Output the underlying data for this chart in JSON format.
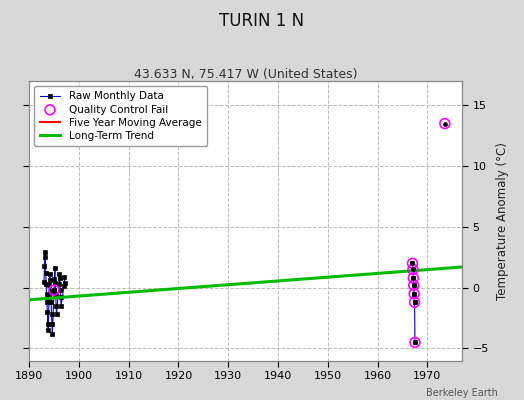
{
  "title": "TURIN 1 N",
  "subtitle": "43.633 N, 75.417 W (United States)",
  "ylabel": "Temperature Anomaly (°C)",
  "credit": "Berkeley Earth",
  "xlim": [
    1890,
    1977
  ],
  "ylim": [
    -6,
    17
  ],
  "yticks": [
    -5,
    0,
    5,
    10,
    15
  ],
  "xticks": [
    1890,
    1900,
    1910,
    1920,
    1930,
    1940,
    1950,
    1960,
    1970
  ],
  "background_color": "#d8d8d8",
  "plot_bg_color": "#ffffff",
  "grid_color": "#bbbbbb",
  "cluster1_x": [
    1893.0,
    1893.083,
    1893.167,
    1893.25,
    1893.333,
    1893.417,
    1893.5,
    1893.583,
    1893.667,
    1893.75,
    1893.833,
    1894.0,
    1894.083,
    1894.167,
    1894.25,
    1894.333,
    1894.417,
    1894.5,
    1894.583,
    1894.667,
    1895.0,
    1895.083,
    1895.167,
    1895.25,
    1895.333,
    1895.417,
    1895.5,
    1896.0,
    1896.083,
    1896.167,
    1896.25,
    1896.333,
    1896.417,
    1897.0,
    1897.083,
    1897.167
  ],
  "cluster1_y": [
    0.5,
    1.8,
    2.5,
    2.9,
    1.2,
    0.3,
    -0.5,
    -1.2,
    -2.0,
    -3.0,
    -3.5,
    -0.8,
    0.2,
    1.1,
    0.6,
    -0.3,
    -1.2,
    -2.2,
    -3.0,
    -3.8,
    -0.2,
    0.7,
    1.6,
    0.4,
    -0.5,
    -1.5,
    -2.2,
    0.3,
    1.1,
    0.8,
    -0.2,
    -0.8,
    -1.5,
    0.1,
    0.9,
    0.4
  ],
  "cluster2_x": [
    1967.0,
    1967.083,
    1967.167,
    1967.25,
    1967.333,
    1967.417,
    1967.5
  ],
  "cluster2_y": [
    2.0,
    1.5,
    0.8,
    0.2,
    -0.5,
    -1.2,
    -4.5
  ],
  "qc_fail_x": [
    1895.0,
    1967.0,
    1967.083,
    1967.167,
    1967.25,
    1967.333,
    1967.417,
    1967.5,
    1973.5
  ],
  "qc_fail_y": [
    -0.2,
    2.0,
    1.5,
    0.8,
    0.2,
    -0.5,
    -1.2,
    -4.5,
    13.5
  ],
  "trend_x": [
    1890,
    1977
  ],
  "trend_y": [
    -1.0,
    1.7
  ],
  "raw_line_color": "#0000dd",
  "raw_marker_color": "#000000",
  "qc_color": "#ff00ff",
  "trend_color": "#00bb00",
  "movavg_color": "#ff0000",
  "legend_entries": [
    "Raw Monthly Data",
    "Quality Control Fail",
    "Five Year Moving Average",
    "Long-Term Trend"
  ]
}
